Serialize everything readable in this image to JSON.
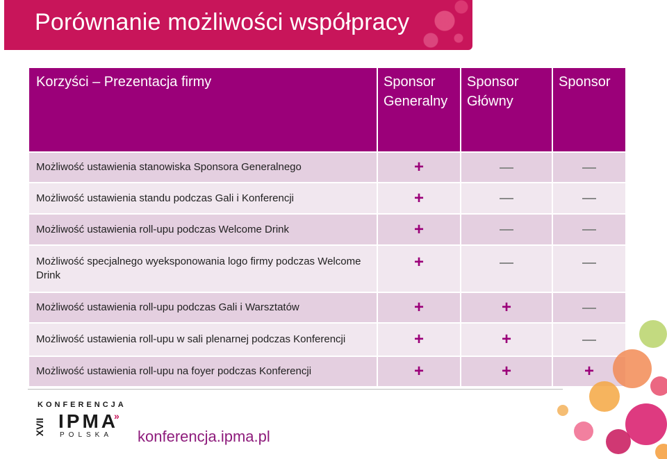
{
  "title": "Porównanie możliwości współpracy",
  "table": {
    "headers": [
      "Korzyści – Prezentacja firmy",
      "Sponsor Generalny",
      "Sponsor Główny",
      "Sponsor"
    ],
    "rows": [
      {
        "label": "Możliwość ustawienia stanowiska Sponsora Generalnego",
        "values": [
          "+",
          "–",
          "–"
        ]
      },
      {
        "label": "Możliwość ustawienia standu podczas Gali i Konferencji",
        "values": [
          "+",
          "–",
          "–"
        ]
      },
      {
        "label": "Możliwość ustawienia roll-upu podczas Welcome Drink",
        "values": [
          "+",
          "–",
          "–"
        ]
      },
      {
        "label": "Możliwość specjalnego wyeksponowania logo firmy podczas Welcome Drink",
        "values": [
          "+",
          "–",
          "–"
        ]
      },
      {
        "label": "Możliwość ustawienia roll-upu podczas Gali i Warsztatów",
        "values": [
          "+",
          "+",
          "–"
        ]
      },
      {
        "label": "Możliwość ustawienia roll-upu w sali plenarnej podczas Konferencji",
        "values": [
          "+",
          "+",
          "–"
        ]
      },
      {
        "label": "Możliwość ustawienia roll-upu na foyer podczas Konferencji",
        "values": [
          "+",
          "+",
          "+"
        ]
      }
    ]
  },
  "logo": {
    "top_text": "KONFERENCJA",
    "main_text": "IPMA",
    "sub_text": "POLSKA",
    "edition": "XVII"
  },
  "url": "konferencja.ipma.pl",
  "colors": {
    "title_banner": "#c8155a",
    "header_bg": "#9b0079",
    "row_odd": "#e4cfe0",
    "row_even": "#f1e7ef",
    "plus": "#9b0079",
    "url": "#8e1c7c"
  }
}
